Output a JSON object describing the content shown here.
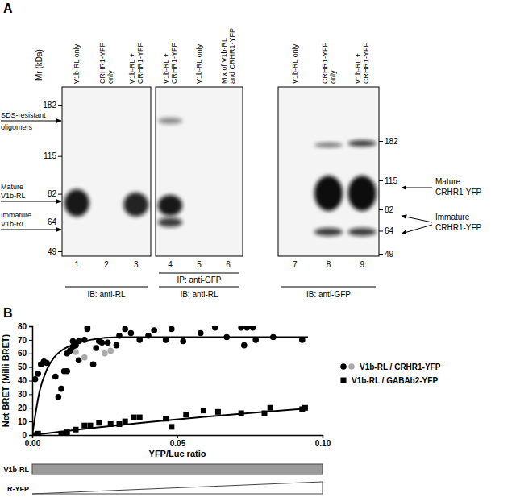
{
  "panel_a": {
    "panel_label": "A",
    "mr_label": "Mr (kDa)",
    "left_markers": [
      182,
      115,
      82,
      64,
      49
    ],
    "right_markers": [
      182,
      115,
      82,
      64,
      49
    ],
    "left_arrows": [
      {
        "lines": [
          "SDS-resistant",
          "oligomers"
        ]
      },
      {
        "lines": [
          "Mature",
          "V1b-RL"
        ]
      },
      {
        "lines": [
          "Immature",
          "V1b-RL"
        ]
      }
    ],
    "right_arrows": [
      {
        "lines": [
          "Mature",
          "CRHR1-YFP"
        ]
      },
      {
        "lines": [
          "Immature",
          "CRHR1-YFP"
        ]
      }
    ],
    "blots": [
      {
        "lanes": [
          {
            "number": 1,
            "label": [
              "V1b-RL only"
            ]
          },
          {
            "number": 2,
            "label": [
              "CRHR1-YFP",
              "only"
            ]
          },
          {
            "number": 3,
            "label": [
              "V1b-RL +",
              "CRHR1-YFP"
            ]
          }
        ],
        "ib": "IB: anti-RL"
      },
      {
        "lanes": [
          {
            "number": 4,
            "label": [
              "V1b-RL +",
              "CRHR1-YFP"
            ]
          },
          {
            "number": 5,
            "label": [
              "V1b-RL only"
            ]
          },
          {
            "number": 6,
            "label": [
              "Mix of V1b-RL",
              "and CRHR1-YFP"
            ]
          }
        ],
        "ip": "IP: anti-GFP",
        "ib": "IB: anti-RL"
      },
      {
        "lanes": [
          {
            "number": 7,
            "label": [
              "V1b-RL only"
            ]
          },
          {
            "number": 8,
            "label": [
              "CRHR1-YFP",
              "only"
            ]
          },
          {
            "number": 9,
            "label": [
              "V1b-RL +",
              "CRHR1-YFP"
            ]
          }
        ],
        "ib": "IB: anti-GFP"
      }
    ]
  },
  "chart_data": {
    "type": "scatter",
    "panel_label": "B",
    "x_label": "YFP/Luc ratio",
    "y_label": "Net BRET (Milli BRET)",
    "xlim": [
      0,
      0.1
    ],
    "ylim": [
      0,
      80
    ],
    "xticks": [
      {
        "value": 0,
        "label": "0.00"
      },
      {
        "value": 0.05,
        "label": "0.05"
      },
      {
        "value": 0.1,
        "label": "0.10"
      }
    ],
    "yticks": [
      0,
      10,
      20,
      30,
      40,
      50,
      60,
      70,
      80
    ],
    "grid": false,
    "legend": "right",
    "bottom_labels": [
      "V1b-RL",
      "R-YFP"
    ],
    "series": [
      {
        "name": "V1b-RL / CRHR1-YFP",
        "marker": "circle",
        "color": "#000000",
        "x": [
          0,
          0.001,
          0.002,
          0.003,
          0.004,
          0.005,
          0.008,
          0.009,
          0.01,
          0.011,
          0.012,
          0.012,
          0.013,
          0.014,
          0.014,
          0.015,
          0.016,
          0.016,
          0.018,
          0.019,
          0.019,
          0.021,
          0.022,
          0.023,
          0.024,
          0.026,
          0.029,
          0.03,
          0.032,
          0.034,
          0.037,
          0.04,
          0.042,
          0.046,
          0.048,
          0.052,
          0.058,
          0.063,
          0.067,
          0.072,
          0.073,
          0.074,
          0.076,
          0.077,
          0.083,
          0.093,
          0.015,
          0.018,
          0.025,
          0.027
        ],
        "values": [
          0,
          41,
          45,
          52,
          54,
          53,
          43,
          28,
          34,
          47,
          47,
          60,
          62,
          65,
          69,
          66,
          55,
          69,
          70,
          78,
          79,
          52,
          64,
          69,
          68,
          68,
          66,
          73,
          78,
          75,
          70,
          73,
          77,
          70,
          78,
          69,
          75,
          79,
          72,
          79,
          66,
          79,
          79,
          70,
          72,
          70,
          61,
          57,
          60,
          62
        ],
        "colors": [
          "#000000",
          "#000000",
          "#000000",
          "#000000",
          "#000000",
          "#000000",
          "#000000",
          "#000000",
          "#000000",
          "#000000",
          "#000000",
          "#000000",
          "#000000",
          "#000000",
          "#000000",
          "#000000",
          "#000000",
          "#000000",
          "#000000",
          "#000000",
          "#000000",
          "#000000",
          "#000000",
          "#000000",
          "#000000",
          "#000000",
          "#000000",
          "#000000",
          "#000000",
          "#000000",
          "#000000",
          "#000000",
          "#000000",
          "#000000",
          "#000000",
          "#000000",
          "#000000",
          "#000000",
          "#000000",
          "#000000",
          "#000000",
          "#000000",
          "#000000",
          "#000000",
          "#000000",
          "#000000",
          "#aaaaaa",
          "#aaaaaa",
          "#aaaaaa",
          "#aaaaaa"
        ],
        "fit_x": [
          0,
          0.0025,
          0.005,
          0.0075,
          0.01,
          0.015,
          0.02,
          0.03,
          0.04,
          0.06,
          0.08,
          0.095
        ],
        "fit_values": [
          0,
          32,
          48,
          57,
          62,
          67,
          70,
          72,
          72,
          72,
          72,
          72
        ]
      },
      {
        "name": "V1b-RL / GABAb2-YFP",
        "marker": "square",
        "color": "#000000",
        "x": [
          0,
          0.002,
          0.01,
          0.012,
          0.015,
          0.018,
          0.02,
          0.023,
          0.027,
          0.03,
          0.032,
          0.035,
          0.037,
          0.046,
          0.048,
          0.053,
          0.059,
          0.064,
          0.072,
          0.08,
          0.082,
          0.093,
          0.094
        ],
        "values": [
          0,
          1,
          1,
          2,
          4,
          7,
          7,
          9,
          8,
          8,
          10,
          13,
          13,
          12,
          6,
          15,
          18,
          17,
          16,
          16,
          20,
          19,
          20
        ],
        "fit_x": [
          0,
          0.02,
          0.04,
          0.06,
          0.08,
          0.095
        ],
        "fit_values": [
          0,
          5,
          9.5,
          13.5,
          17,
          19.5
        ]
      }
    ]
  }
}
